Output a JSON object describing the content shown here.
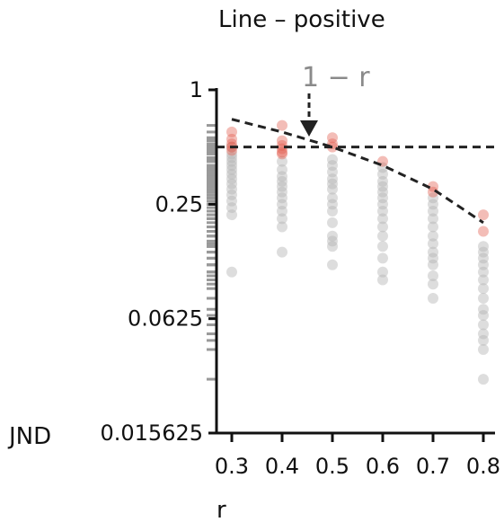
{
  "chart_data": {
    "type": "scatter",
    "title": "Line – positive",
    "xlabel": "r",
    "ylabel": "JND",
    "x_ticks": [
      0.3,
      0.4,
      0.5,
      0.6,
      0.7,
      0.8
    ],
    "x_tick_labels": [
      "0.3",
      "0.4",
      "0.5",
      "0.6",
      "0.7",
      "0.8"
    ],
    "y_scale": "log2",
    "y_ticks": [
      0.015625,
      0.0625,
      0.25,
      1
    ],
    "y_tick_labels": [
      "0.015625",
      "0.0625",
      "0.25",
      "1"
    ],
    "xlim": [
      0.27,
      0.83
    ],
    "ylim": [
      0.015625,
      1
    ],
    "grid": false,
    "legend": "none",
    "reference_line_y": 0.5,
    "curve_label": "1 − r",
    "curve_points": [
      [
        0.3,
        0.7
      ],
      [
        0.4,
        0.6
      ],
      [
        0.5,
        0.5
      ],
      [
        0.6,
        0.4
      ],
      [
        0.7,
        0.3
      ],
      [
        0.8,
        0.2
      ]
    ],
    "colors": {
      "gray": "#b3b3b3",
      "red": "#e05b4c",
      "rug": "#999999",
      "line": "#222222"
    },
    "series": [
      {
        "x": 0.3,
        "gray": [
          0.5,
          0.46,
          0.44,
          0.42,
          0.4,
          0.38,
          0.36,
          0.34,
          0.32,
          0.3,
          0.28,
          0.26,
          0.24,
          0.22,
          0.11
        ],
        "red": [
          0.6,
          0.55,
          0.52,
          0.5,
          0.48
        ]
      },
      {
        "x": 0.4,
        "gray": [
          0.42,
          0.38,
          0.35,
          0.33,
          0.31,
          0.29,
          0.27,
          0.25,
          0.23,
          0.21,
          0.19,
          0.14
        ],
        "red": [
          0.65,
          0.54,
          0.51,
          0.49,
          0.47,
          0.46
        ]
      },
      {
        "x": 0.5,
        "gray": [
          0.43,
          0.4,
          0.37,
          0.34,
          0.32,
          0.3,
          0.27,
          0.25,
          0.23,
          0.2,
          0.17,
          0.16,
          0.15,
          0.12
        ],
        "red": [
          0.56,
          0.52,
          0.5
        ]
      },
      {
        "x": 0.6,
        "gray": [
          0.39,
          0.36,
          0.33,
          0.31,
          0.29,
          0.27,
          0.25,
          0.23,
          0.21,
          0.19,
          0.17,
          0.15,
          0.13,
          0.11,
          0.1
        ],
        "red": [
          0.42
        ]
      },
      {
        "x": 0.7,
        "gray": [
          0.27,
          0.25,
          0.23,
          0.21,
          0.19,
          0.17,
          0.155,
          0.14,
          0.13,
          0.12,
          0.105,
          0.095,
          0.08
        ],
        "red": [
          0.31,
          0.29
        ]
      },
      {
        "x": 0.8,
        "gray": [
          0.15,
          0.14,
          0.13,
          0.12,
          0.11,
          0.1,
          0.09,
          0.08,
          0.07,
          0.065,
          0.058,
          0.052,
          0.048,
          0.043,
          0.03
        ],
        "red": [
          0.22,
          0.18
        ]
      }
    ]
  }
}
